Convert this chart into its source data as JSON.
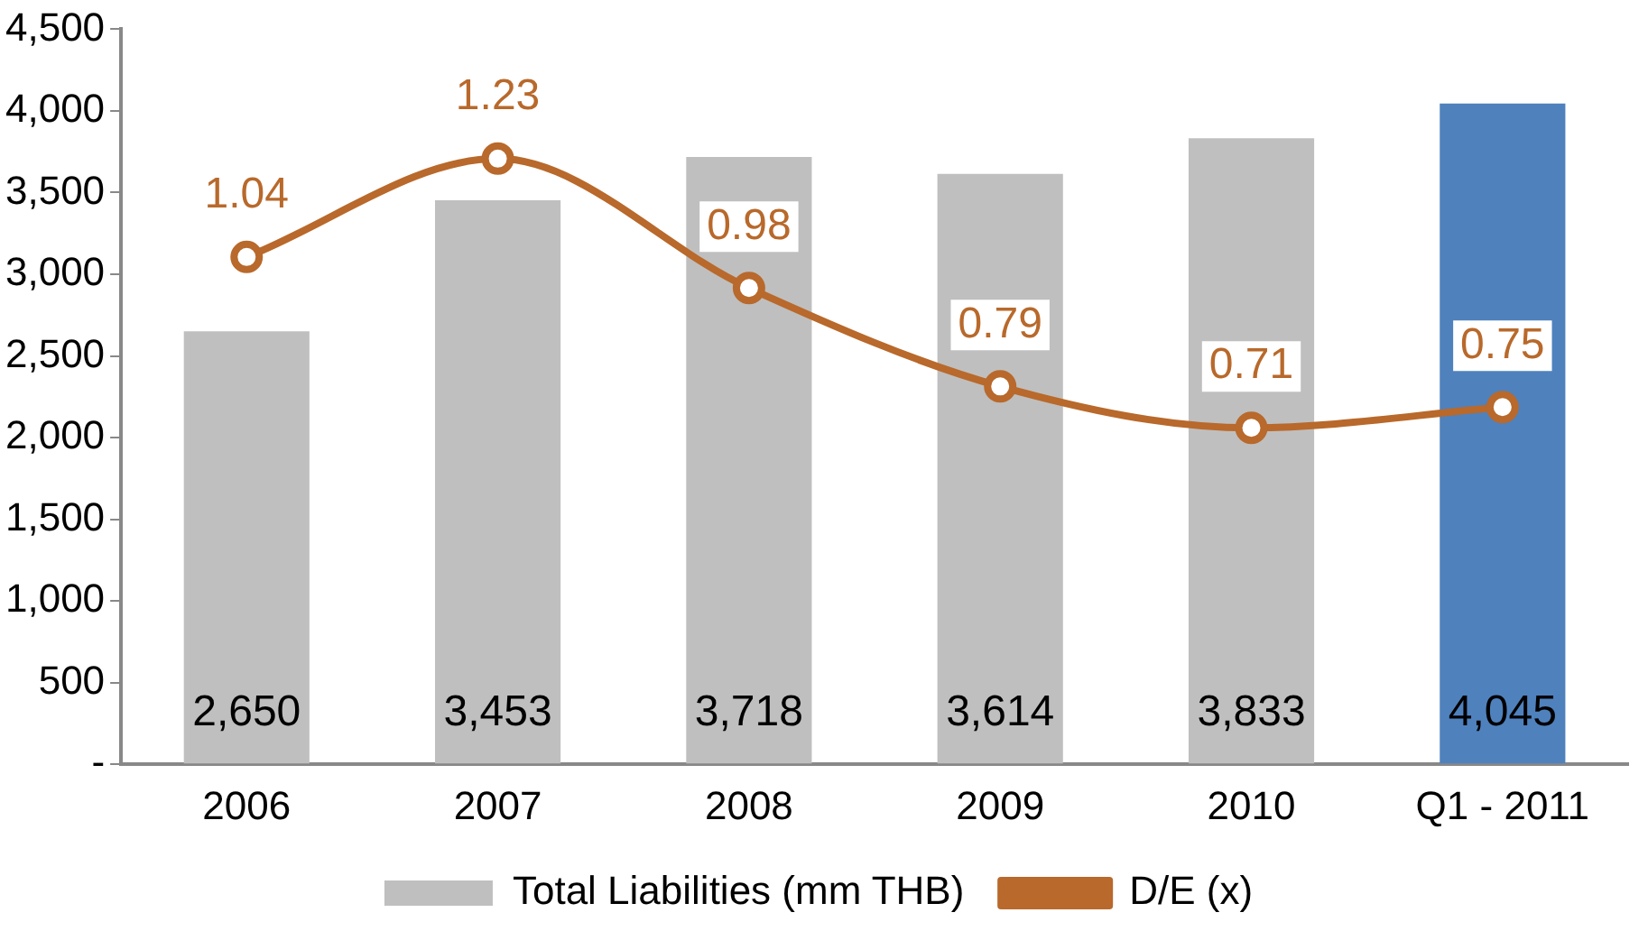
{
  "chart_data": {
    "type": "bar",
    "categories": [
      "2006",
      "2007",
      "2008",
      "2009",
      "2010",
      "Q1 - 2011"
    ],
    "series": [
      {
        "name": "Total Liabilities (mm THB)",
        "colors": [
          "#bfbfbf",
          "#bfbfbf",
          "#bfbfbf",
          "#bfbfbf",
          "#bfbfbf",
          "#4f81bd"
        ],
        "values": [
          2650,
          3453,
          3718,
          3614,
          3833,
          4045
        ],
        "value_labels": [
          "2,650",
          "3,453",
          "3,718",
          "3,614",
          "3,833",
          "4,045"
        ]
      },
      {
        "name": "D/E (x)",
        "type": "line",
        "axis": "y2",
        "color": "#b8692b",
        "values": [
          1.04,
          1.23,
          0.98,
          0.79,
          0.71,
          0.75
        ],
        "value_labels": [
          "1.04",
          "1.23",
          "0.98",
          "0.79",
          "0.71",
          "0.75"
        ]
      }
    ],
    "ylim": [
      0,
      4500
    ],
    "yticks": [
      {
        "value": 0,
        "label": "-"
      },
      {
        "value": 500,
        "label": "500"
      },
      {
        "value": 1000,
        "label": "1,000"
      },
      {
        "value": 1500,
        "label": "1,500"
      },
      {
        "value": 2000,
        "label": "2,000"
      },
      {
        "value": 2500,
        "label": "2,500"
      },
      {
        "value": 3000,
        "label": "3,000"
      },
      {
        "value": 3500,
        "label": "3,500"
      },
      {
        "value": 4000,
        "label": "4,000"
      },
      {
        "value": 4500,
        "label": "4,500"
      }
    ],
    "y2lim": [
      0.06,
      1.48
    ],
    "marker": "circle",
    "grid": false,
    "legend": "bottom"
  }
}
